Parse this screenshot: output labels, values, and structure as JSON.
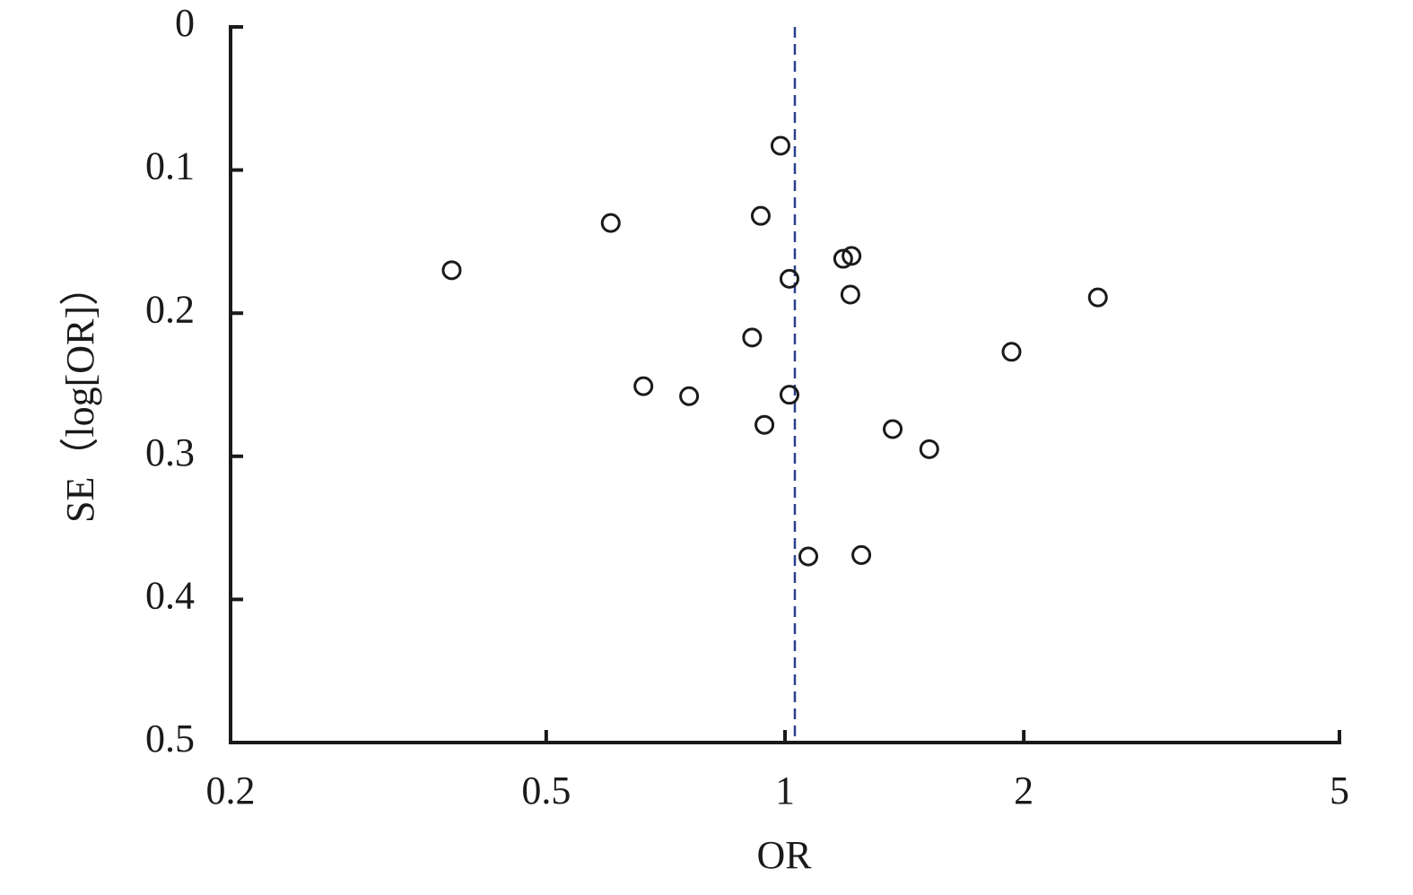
{
  "chart_data": {
    "type": "scatter",
    "xlabel": "OR",
    "ylabel": "SE（log[OR]）",
    "x": [
      0.38,
      0.603,
      0.987,
      0.932,
      1.184,
      1.213,
      1.013,
      1.209,
      2.48,
      0.909,
      1.93,
      0.663,
      0.757,
      1.013,
      0.942,
      1.367,
      1.52,
      1.07,
      1.248
    ],
    "values": [
      0.17,
      0.137,
      0.083,
      0.132,
      0.162,
      0.16,
      0.176,
      0.187,
      0.189,
      0.217,
      0.227,
      0.251,
      0.258,
      0.257,
      0.278,
      0.281,
      0.295,
      0.37,
      0.369
    ],
    "color": "#1a1a1a",
    "xlim": [
      0.2,
      5
    ],
    "xticks": [
      0.2,
      0.5,
      1,
      2,
      5
    ],
    "xscale": "log",
    "ylim": [
      0,
      0.5
    ],
    "yticks": [
      0,
      0.1,
      0.2,
      0.3,
      0.4,
      0.5
    ],
    "yinverted": true,
    "reference_line": 1.029,
    "reference_color": "#2b3f8c"
  }
}
